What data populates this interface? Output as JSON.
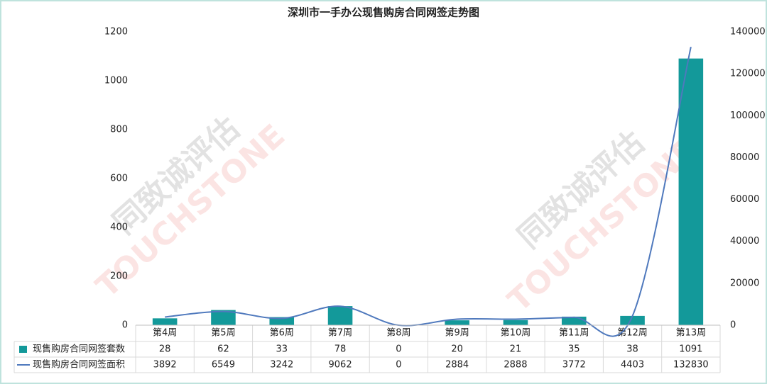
{
  "chart_data": {
    "type": "bar-line",
    "title": "深圳市一手办公现售购房合同网签走势图",
    "watermark": [
      "同致诚评估",
      "TOUCHSTONE"
    ],
    "categories": [
      "第4周",
      "第5周",
      "第6周",
      "第7周",
      "第8周",
      "第9周",
      "第10周",
      "第11周",
      "第12周",
      "第13周"
    ],
    "series": [
      {
        "name": "现售购房合同网签套数",
        "type": "bar",
        "color": "#13999a",
        "axis": "y",
        "values": [
          28,
          62,
          33,
          78,
          0,
          20,
          21,
          35,
          38,
          1091
        ]
      },
      {
        "name": "现售购房合同网签面积",
        "type": "line",
        "color": "#4f79bd",
        "axis": "y2",
        "smooth": true,
        "values": [
          3892,
          6549,
          3242,
          9062,
          0,
          2884,
          2888,
          3772,
          4403,
          132830
        ]
      }
    ],
    "ylim": [
      0,
      1200
    ],
    "yticks": [
      0,
      200,
      400,
      600,
      800,
      1000,
      1200
    ],
    "y2lim": [
      0,
      140000
    ],
    "y2ticks": [
      0,
      20000,
      40000,
      60000,
      80000,
      100000,
      120000,
      140000
    ],
    "grid": false,
    "data_table": true
  }
}
